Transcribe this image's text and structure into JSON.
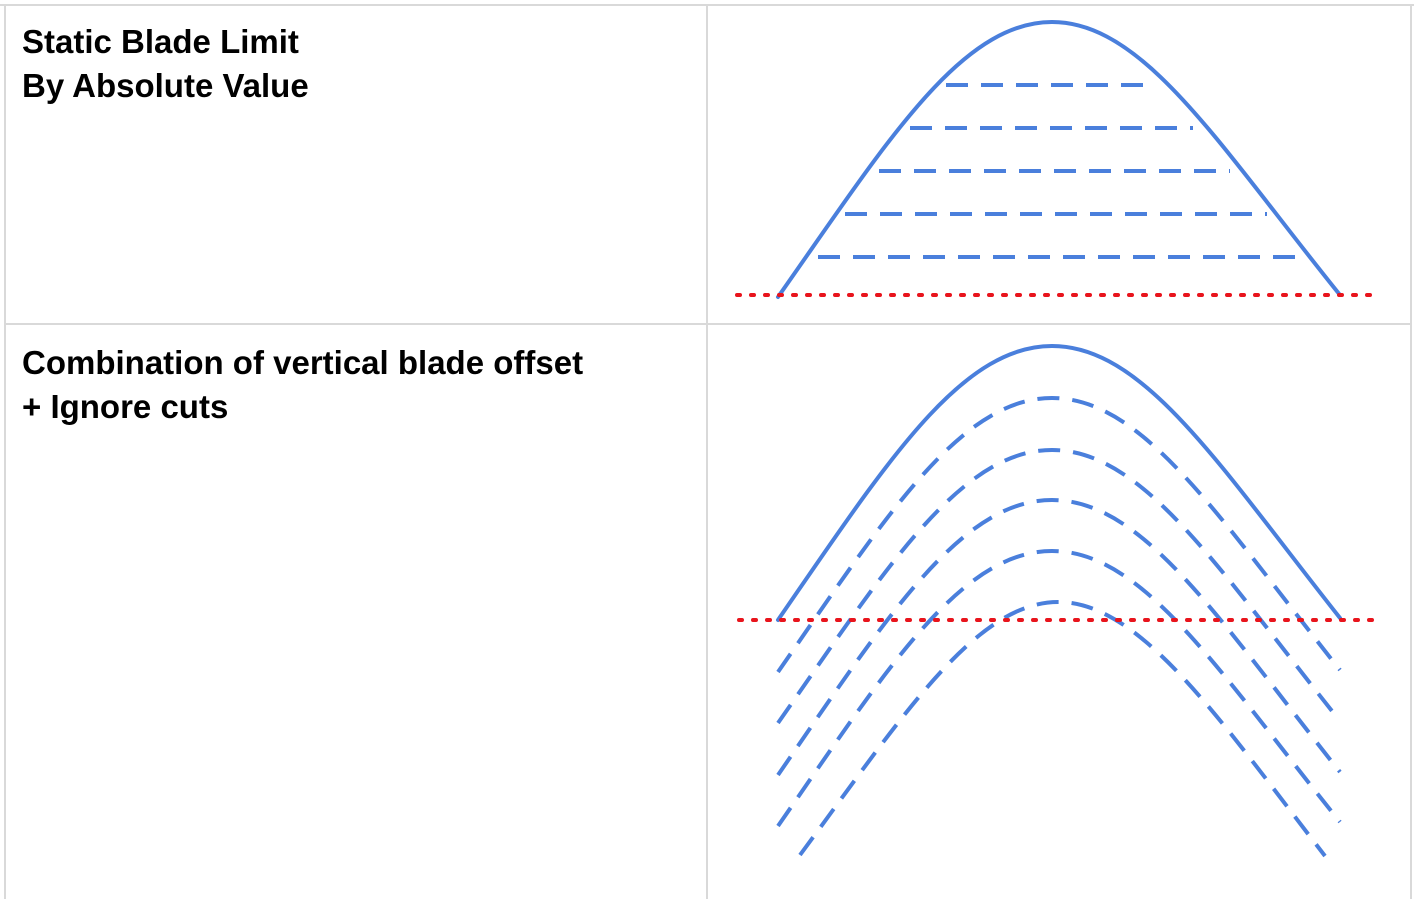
{
  "rows": [
    {
      "label_lines": [
        "Static Blade Limit",
        "By Absolute Value"
      ],
      "diagram": {
        "style": "horizontal-dashed-layers",
        "layer_count": 5,
        "limit_line": "red-dotted-horizontal"
      }
    },
    {
      "label_lines": [
        "Combination of vertical blade offset",
        "+ Ignore cuts"
      ],
      "diagram": {
        "style": "offset-dashed-curves",
        "layer_count": 5,
        "limit_line": "red-dotted-horizontal"
      }
    }
  ],
  "colors": {
    "curve": "#4a7fdc",
    "limit_line": "#e8141c",
    "grid": "#d9d9d9",
    "text": "#000000"
  }
}
